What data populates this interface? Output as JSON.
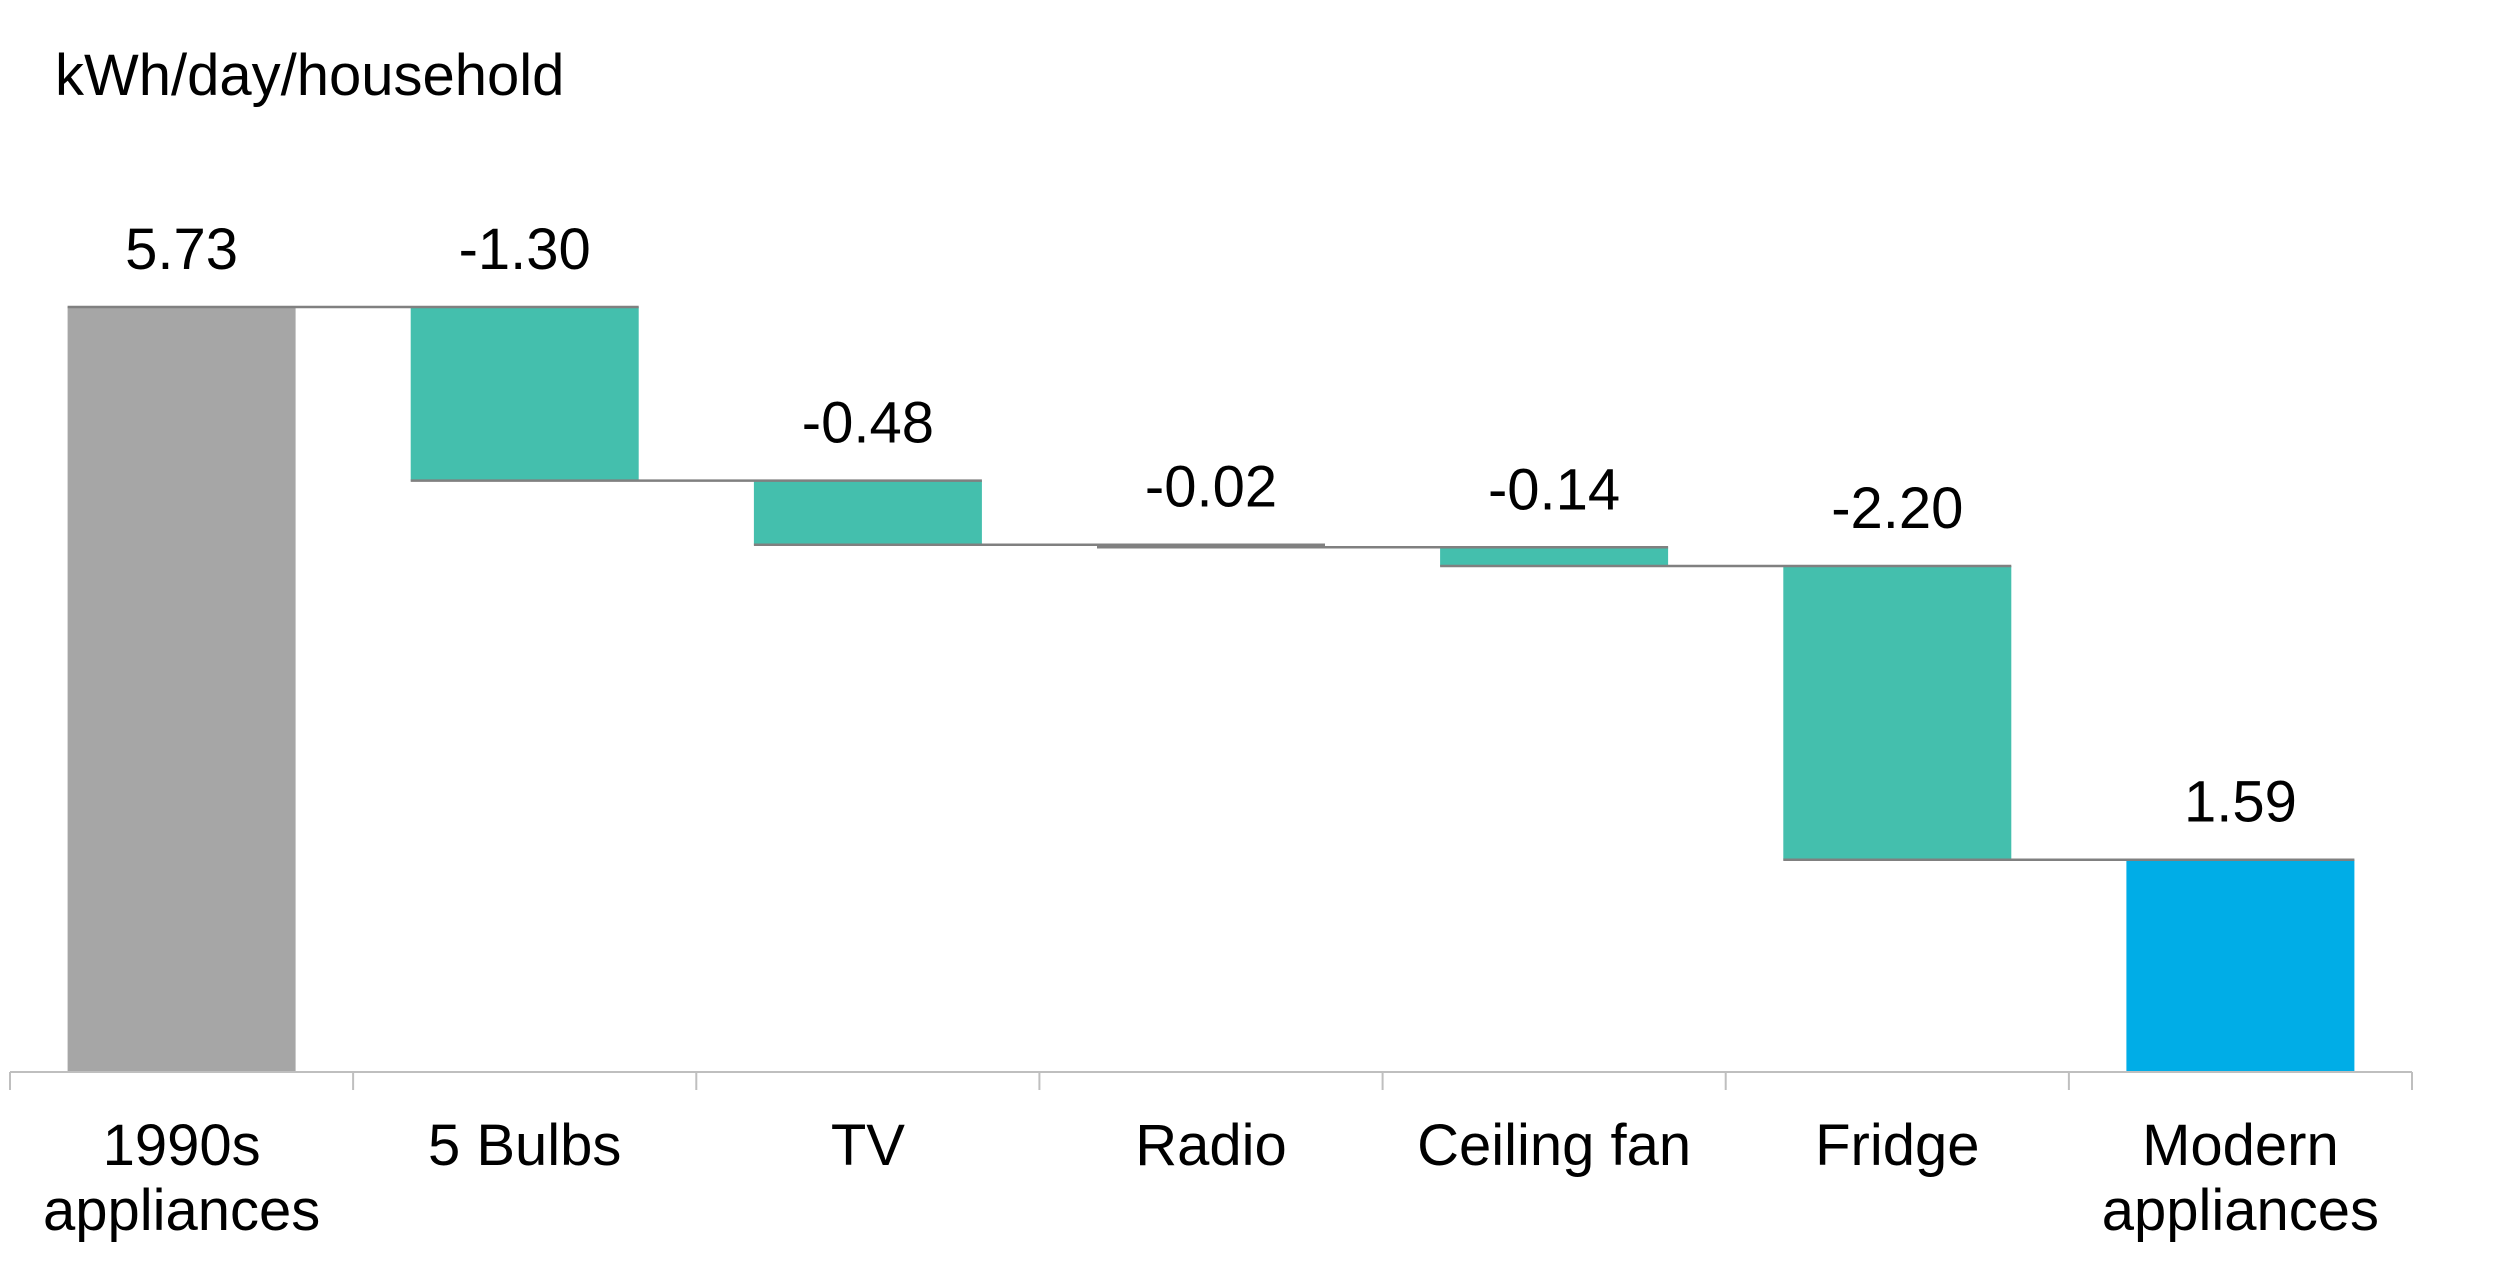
{
  "chart_data": {
    "type": "waterfall",
    "title": "",
    "unit_label": "kWh/day/household",
    "xlabel": "",
    "ylabel": "kWh/day/household",
    "categories": [
      [
        "1990s",
        "appliances"
      ],
      [
        "5 Bulbs"
      ],
      [
        "TV"
      ],
      [
        "Radio"
      ],
      [
        "Ceiling fan"
      ],
      [
        "Fridge"
      ],
      [
        "Modern",
        "appliances"
      ]
    ],
    "values": [
      5.73,
      -1.3,
      -0.48,
      -0.02,
      -0.14,
      -2.2,
      1.59
    ],
    "value_labels": [
      "5.73",
      "-1.30",
      "-0.48",
      "-0.02",
      "-0.14",
      "-2.20",
      "1.59"
    ],
    "bar_kinds": [
      "total",
      "delta",
      "delta",
      "delta",
      "delta",
      "delta",
      "total"
    ],
    "ylim": [
      0,
      5.73
    ],
    "grid": false,
    "legend": "none",
    "colors": {
      "start_total": "#A6A6A6",
      "decrease": "#44BFAD",
      "end_total": "#00ADE7",
      "connector": "#808080",
      "axis": "#BFBFBF"
    }
  }
}
